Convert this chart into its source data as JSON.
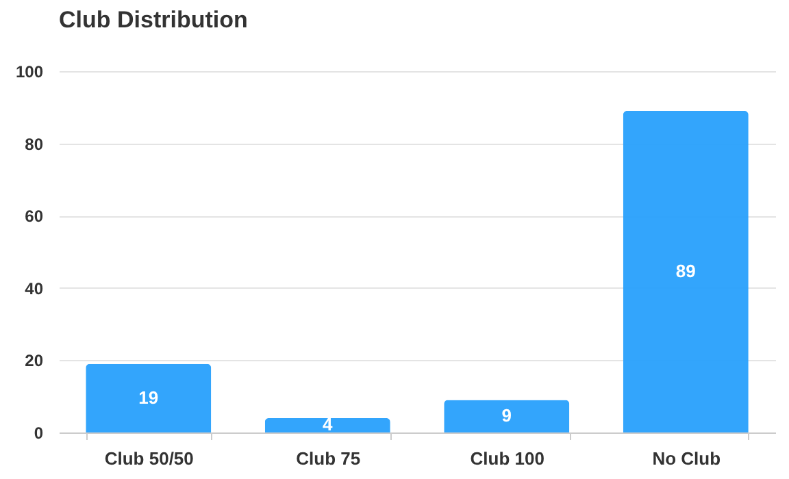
{
  "chart_data": {
    "type": "bar",
    "title": "Club Distribution",
    "categories": [
      "Club 50/50",
      "Club 75",
      "Club 100",
      "No Club"
    ],
    "values": [
      19,
      4,
      9,
      89
    ],
    "color": "#28a0fc",
    "ylim": [
      0,
      100
    ],
    "yticks": [
      0,
      20,
      40,
      60,
      80,
      100
    ],
    "grid": "y",
    "data_labels": true
  }
}
